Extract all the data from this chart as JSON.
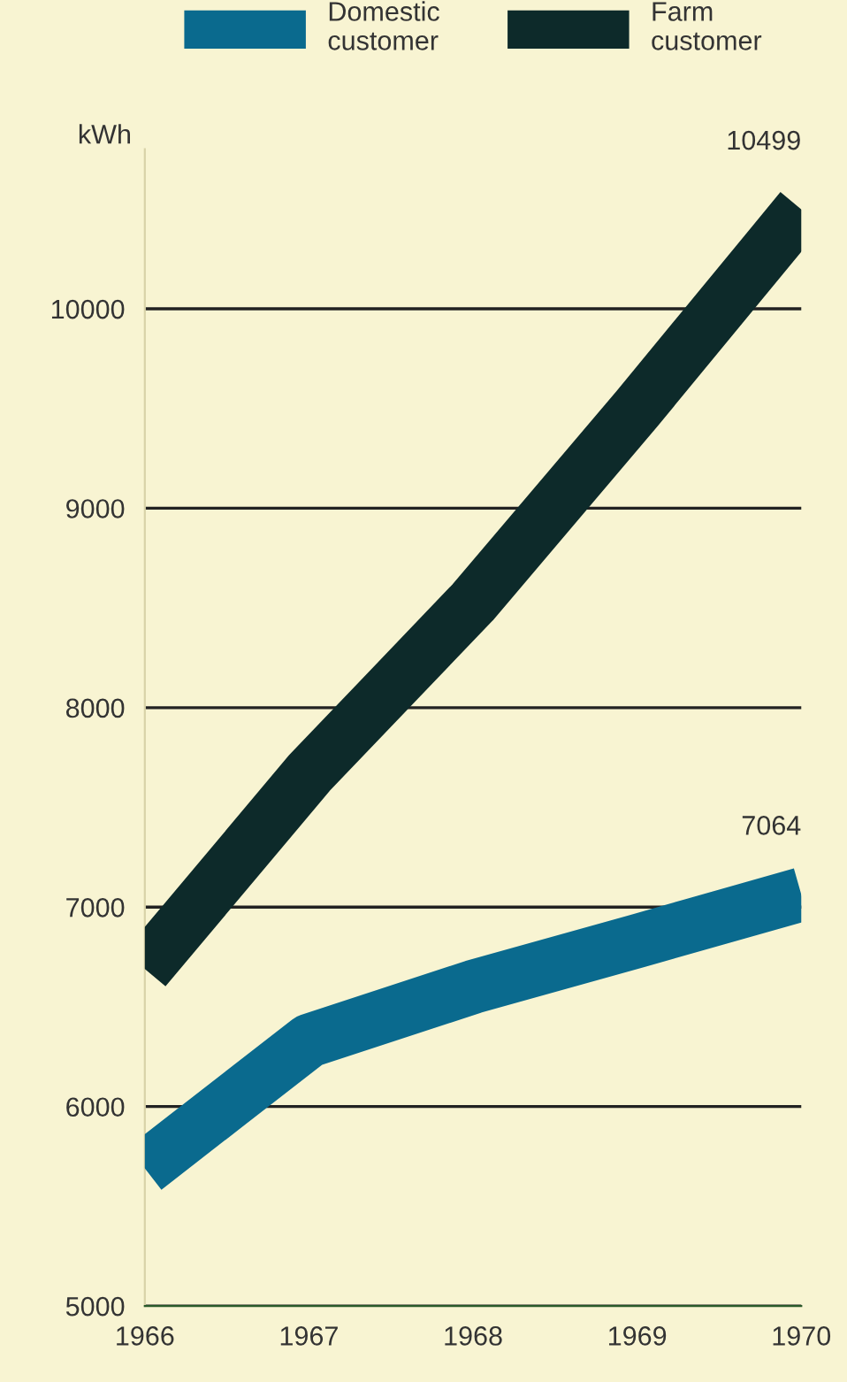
{
  "chart_data": {
    "type": "line",
    "ylabel": "kWh",
    "categories": [
      "1966",
      "1967",
      "1968",
      "1969",
      "1970"
    ],
    "series": [
      {
        "name": "Domestic customer",
        "color": "#0a6a8e",
        "values": [
          5690,
          6330,
          6600,
          6830,
          7064
        ],
        "value_labels": [
          null,
          null,
          null,
          null,
          "7064"
        ]
      },
      {
        "name": "Farm customer",
        "color": "#0d2a2a",
        "values": [
          6690,
          7670,
          8530,
          9500,
          10499
        ],
        "value_labels": [
          null,
          null,
          null,
          null,
          "10499"
        ]
      }
    ],
    "ylim": [
      5000,
      10800
    ],
    "yticks": [
      5000,
      6000,
      7000,
      8000,
      9000,
      10000
    ],
    "grid": "y",
    "legend": "top",
    "line_style": "solid",
    "marker": "none"
  }
}
